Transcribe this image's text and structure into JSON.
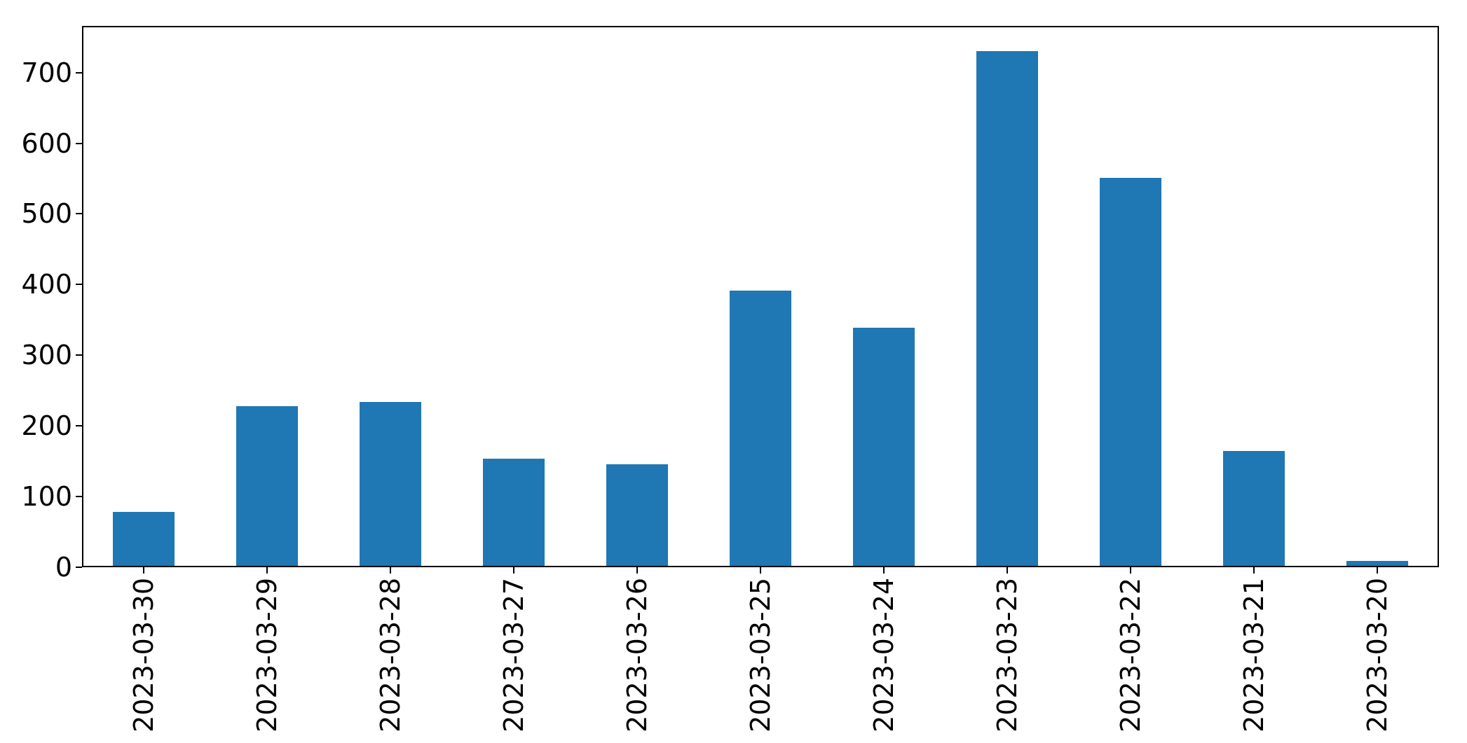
{
  "chart_data": {
    "type": "bar",
    "categories": [
      "2023-03-30",
      "2023-03-29",
      "2023-03-28",
      "2023-03-27",
      "2023-03-26",
      "2023-03-25",
      "2023-03-24",
      "2023-03-23",
      "2023-03-22",
      "2023-03-21",
      "2023-03-20"
    ],
    "values": [
      76,
      226,
      232,
      152,
      144,
      389,
      337,
      728,
      549,
      163,
      7
    ],
    "title": "",
    "xlabel": "",
    "ylabel": "",
    "ylim": [
      0,
      766
    ],
    "yticks": [
      0,
      100,
      200,
      300,
      400,
      500,
      600,
      700
    ],
    "x_tick_rotation": 90,
    "grid": false,
    "legend": null,
    "bar_color": "#1f77b4",
    "spine_color": "#000000",
    "background_color": "#ffffff",
    "bar_width_fraction": 0.5
  }
}
